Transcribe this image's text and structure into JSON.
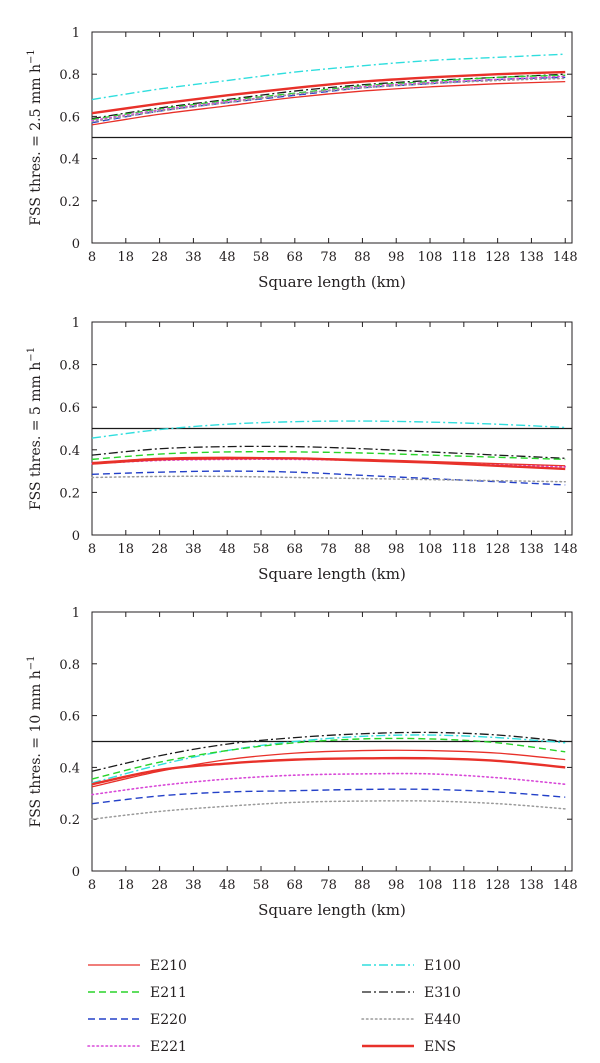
{
  "figure": {
    "legend_placement": "bottom",
    "legend": [
      {
        "name": "E210",
        "color": "#e8312a",
        "dash": "solid",
        "width": 1.3
      },
      {
        "name": "E211",
        "color": "#28d42a",
        "dash": "dashed",
        "width": 1.4
      },
      {
        "name": "E220",
        "color": "#2340c8",
        "dash": "dashed",
        "width": 1.4
      },
      {
        "name": "E221",
        "color": "#d848d8",
        "dash": "dotted",
        "width": 1.6
      },
      {
        "name": "E100",
        "color": "#30dede",
        "dash": "dashdot",
        "width": 1.4
      },
      {
        "name": "E310",
        "color": "#1a1a1a",
        "dash": "dashdot",
        "width": 1.3
      },
      {
        "name": "E440",
        "color": "#9a9a9a",
        "dash": "dotted",
        "width": 1.5
      },
      {
        "name": "ENS",
        "color": "#e8312a",
        "dash": "solid",
        "width": 2.4
      }
    ]
  },
  "chart_data": [
    {
      "type": "line",
      "xlabel": "Square length (km)",
      "ylabel_main": "FSS thres. = 2.5 mm h",
      "ylabel_sup": "−1",
      "xlim": [
        8,
        150
      ],
      "ylim": [
        0,
        1
      ],
      "x_ticks": [
        "8",
        "18",
        "28",
        "38",
        "48",
        "58",
        "68",
        "78",
        "88",
        "98",
        "108",
        "118",
        "128",
        "138",
        "148"
      ],
      "y_ticks": [
        "0",
        "0.2",
        "0.4",
        "0.6",
        "0.8",
        "1"
      ],
      "reference_line": 0.5,
      "grid": false,
      "x": [
        8,
        28,
        48,
        68,
        88,
        108,
        128,
        148
      ],
      "series": [
        {
          "name": "E100",
          "values": [
            0.68,
            0.73,
            0.77,
            0.81,
            0.84,
            0.865,
            0.88,
            0.895
          ]
        },
        {
          "name": "E310",
          "values": [
            0.59,
            0.64,
            0.68,
            0.72,
            0.75,
            0.77,
            0.785,
            0.8
          ]
        },
        {
          "name": "E211",
          "values": [
            0.585,
            0.635,
            0.675,
            0.71,
            0.745,
            0.765,
            0.785,
            0.795
          ]
        },
        {
          "name": "E220",
          "values": [
            0.57,
            0.625,
            0.665,
            0.7,
            0.735,
            0.755,
            0.775,
            0.785
          ]
        },
        {
          "name": "E221",
          "values": [
            0.58,
            0.63,
            0.67,
            0.705,
            0.74,
            0.76,
            0.775,
            0.79
          ]
        },
        {
          "name": "E440",
          "values": [
            0.575,
            0.625,
            0.665,
            0.705,
            0.735,
            0.755,
            0.77,
            0.78
          ]
        },
        {
          "name": "E210",
          "values": [
            0.56,
            0.61,
            0.65,
            0.69,
            0.72,
            0.74,
            0.755,
            0.765
          ]
        },
        {
          "name": "ENS",
          "values": [
            0.615,
            0.66,
            0.7,
            0.735,
            0.765,
            0.785,
            0.8,
            0.81
          ]
        }
      ]
    },
    {
      "type": "line",
      "xlabel": "Square length (km)",
      "ylabel_main": "FSS thres. = 5 mm h",
      "ylabel_sup": "−1",
      "xlim": [
        8,
        150
      ],
      "ylim": [
        0,
        1
      ],
      "x_ticks": [
        "8",
        "18",
        "28",
        "38",
        "48",
        "58",
        "68",
        "78",
        "88",
        "98",
        "108",
        "118",
        "128",
        "138",
        "148"
      ],
      "y_ticks": [
        "0",
        "0.2",
        "0.4",
        "0.6",
        "0.8",
        "1"
      ],
      "reference_line": 0.5,
      "grid": false,
      "x": [
        8,
        28,
        48,
        68,
        88,
        108,
        128,
        148
      ],
      "series": [
        {
          "name": "E100",
          "values": [
            0.455,
            0.495,
            0.52,
            0.532,
            0.535,
            0.53,
            0.52,
            0.505
          ]
        },
        {
          "name": "E310",
          "values": [
            0.375,
            0.405,
            0.415,
            0.415,
            0.405,
            0.39,
            0.375,
            0.36
          ]
        },
        {
          "name": "E211",
          "values": [
            0.355,
            0.38,
            0.39,
            0.39,
            0.385,
            0.375,
            0.365,
            0.355
          ]
        },
        {
          "name": "E221",
          "values": [
            0.335,
            0.35,
            0.355,
            0.355,
            0.35,
            0.34,
            0.33,
            0.32
          ]
        },
        {
          "name": "E210",
          "values": [
            0.34,
            0.36,
            0.365,
            0.36,
            0.355,
            0.345,
            0.335,
            0.325
          ]
        },
        {
          "name": "ENS",
          "values": [
            0.335,
            0.355,
            0.36,
            0.36,
            0.35,
            0.34,
            0.325,
            0.31
          ]
        },
        {
          "name": "E220",
          "values": [
            0.285,
            0.295,
            0.3,
            0.295,
            0.28,
            0.265,
            0.25,
            0.235
          ]
        },
        {
          "name": "E440",
          "values": [
            0.27,
            0.275,
            0.275,
            0.27,
            0.265,
            0.26,
            0.255,
            0.25
          ]
        }
      ]
    },
    {
      "type": "line",
      "xlabel": "Square length (km)",
      "ylabel_main": "FSS thres. = 10 mm h",
      "ylabel_sup": "−1",
      "xlim": [
        8,
        150
      ],
      "ylim": [
        0,
        1
      ],
      "x_ticks": [
        "8",
        "18",
        "28",
        "38",
        "48",
        "58",
        "68",
        "78",
        "88",
        "98",
        "108",
        "118",
        "128",
        "138",
        "148"
      ],
      "y_ticks": [
        "0",
        "0.2",
        "0.4",
        "0.6",
        "0.8",
        "1"
      ],
      "reference_line": 0.5,
      "grid": false,
      "x": [
        8,
        28,
        48,
        68,
        88,
        108,
        128,
        148
      ],
      "series": [
        {
          "name": "E310",
          "values": [
            0.385,
            0.445,
            0.49,
            0.515,
            0.53,
            0.535,
            0.525,
            0.5
          ]
        },
        {
          "name": "E100",
          "values": [
            0.34,
            0.41,
            0.465,
            0.5,
            0.52,
            0.525,
            0.515,
            0.495
          ]
        },
        {
          "name": "E211",
          "values": [
            0.355,
            0.42,
            0.465,
            0.495,
            0.51,
            0.51,
            0.495,
            0.46
          ]
        },
        {
          "name": "E210",
          "values": [
            0.325,
            0.385,
            0.43,
            0.455,
            0.465,
            0.465,
            0.455,
            0.43
          ]
        },
        {
          "name": "ENS",
          "values": [
            0.335,
            0.39,
            0.415,
            0.43,
            0.435,
            0.435,
            0.425,
            0.4
          ]
        },
        {
          "name": "E221",
          "values": [
            0.295,
            0.33,
            0.355,
            0.37,
            0.375,
            0.375,
            0.36,
            0.335
          ]
        },
        {
          "name": "E220",
          "values": [
            0.26,
            0.29,
            0.305,
            0.31,
            0.315,
            0.315,
            0.305,
            0.285
          ]
        },
        {
          "name": "E440",
          "values": [
            0.2,
            0.23,
            0.25,
            0.265,
            0.27,
            0.27,
            0.26,
            0.24
          ]
        }
      ]
    }
  ]
}
